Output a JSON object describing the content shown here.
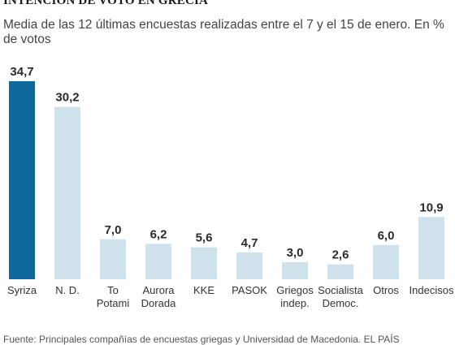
{
  "header": {
    "title": "INTENCIÓN DE VOTO EN GRECIA",
    "subtitle": "Media de las 12 últimas encuestas realizadas entre el 7 y el 15 de enero. En % de votos"
  },
  "footer": {
    "source": "Fuente: Principales compañías de encuestas griegas y Universidad de Macedonia. EL PAÍS"
  },
  "chart_data": {
    "type": "bar",
    "title": "INTENCIÓN DE VOTO EN GRECIA",
    "subtitle": "Media de las 12 últimas encuestas realizadas entre el 7 y el 15 de enero. En % de votos",
    "categories": [
      "Syriza",
      "N. D.",
      "To Potami",
      "Aurora Dorada",
      "KKE",
      "PASOK",
      "Griegos indep.",
      "Socialista Democ.",
      "Otros",
      "Indecisos"
    ],
    "category_lines": [
      [
        "Syriza"
      ],
      [
        "N. D."
      ],
      [
        "To",
        "Potami"
      ],
      [
        "Aurora",
        "Dorada"
      ],
      [
        "KKE"
      ],
      [
        "PASOK"
      ],
      [
        "Griegos",
        "indep."
      ],
      [
        "Socialista",
        "Democ."
      ],
      [
        "Otros"
      ],
      [
        "Indecisos"
      ]
    ],
    "values": [
      34.7,
      30.2,
      7.0,
      6.2,
      5.6,
      4.7,
      3.0,
      2.6,
      6.0,
      10.9
    ],
    "value_labels": [
      "34,7",
      "30,2",
      "7,0",
      "6,2",
      "5,6",
      "4,7",
      "3,0",
      "2,6",
      "6,0",
      "10,9"
    ],
    "ylim": [
      0,
      34.7
    ],
    "grid": false,
    "highlight_index": 0,
    "colors": {
      "highlight": "#0f6a9b",
      "default": "#cfe2ec"
    }
  }
}
